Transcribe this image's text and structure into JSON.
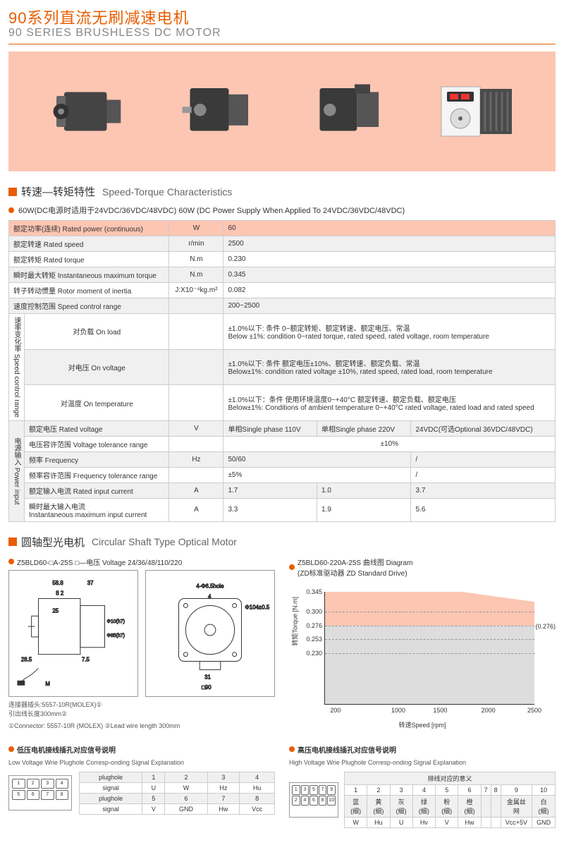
{
  "title": {
    "cn": "90系列直流无刷减速电机",
    "en": "90 SERIES BRUSHLESS DC MOTOR"
  },
  "sections": {
    "speed_torque": {
      "cn": "转速—转矩特性",
      "en": "Speed-Torque Characteristics"
    },
    "circular": {
      "cn": "圆轴型光电机",
      "en": "Circular Shaft Type Optical Motor"
    },
    "low_v": {
      "cn": "低压电机接线插孔对应信号说明",
      "en": "Low Voltage Wrie Plughole Corresp-onding Signal Explanation"
    },
    "high_v": {
      "cn": "高压电机接线插孔对应信号说明",
      "en": "High Voltage Wrie Plughole Corresp-onding Signal Explanation"
    }
  },
  "power_note": "60W(DC电源时适用于24VDC/36VDC/48VDC)  60W (DC Power Supply When Applied To 24VDC/36VDC/48VDC)",
  "spec_table": {
    "rated_power": {
      "label": "额定功率(连续) Rated power (continuous)",
      "unit": "W",
      "val": "60"
    },
    "rated_speed": {
      "label": "额定转速 Rated speed",
      "unit": "r/min",
      "val": "2500"
    },
    "rated_torque": {
      "label": "额定转矩 Rated torque",
      "unit": "N.m",
      "val": "0.230"
    },
    "max_torque": {
      "label": "瞬时最大转矩 Instantaneous maximum torque",
      "unit": "N.m",
      "val": "0.345"
    },
    "inertia": {
      "label": "转子转动惯量 Rotor moment of inertia",
      "unit": "J:X10⁻⁴kg.m²",
      "val": "0.082"
    },
    "speed_range": {
      "label": "速度控制范围 Speed control range",
      "unit": "",
      "val": "200~2500"
    }
  },
  "scr_label": "速率变化率 Speed control range",
  "scr": {
    "load": {
      "label": "对负载 On load",
      "val": "±1.0%以下: 条件 0~额定转矩、额定转速、额定电压、常温\nBelow ±1%: condition 0~rated torque, rated speed, rated voltage, room temperature"
    },
    "voltage": {
      "label": "对电压 On voltage",
      "val": "±1.0%以下: 条件 额定电压±10%、额定转速、额定负载、常温\nBelow±1%: condition rated voltage ±10%, rated speed, rated load, room temperature"
    },
    "temp": {
      "label": "对温度 On temperature",
      "val": "±1.0%以下：条件 使用环境温度0~+40°C 额定转速、额定负载、额定电压\nBelow±1%: Conditions of ambient temperature 0~+40°C rated voltage, rated load and rated speed"
    }
  },
  "power_label": "电源输入 Power input",
  "power": {
    "rated_v": {
      "label": "额定电压 Rated voltage",
      "unit": "V",
      "c1": "单相Single phase 110V",
      "c2": "单相Single phase 220V",
      "c3": "24VDC(可选Optional 36VDC/48VDC)"
    },
    "v_tol": {
      "label": "电压容许范围 Voltage tolerance range",
      "unit": "",
      "span": "±10%"
    },
    "freq": {
      "label": "频率 Frequency",
      "unit": "Hz",
      "c1": "50/60",
      "c2": "",
      "c3": "/"
    },
    "freq_tol": {
      "label": "频率容许范围 Frequency tolerance range",
      "unit": "",
      "c1": "±5%",
      "c2": "",
      "c3": "/"
    },
    "rated_i": {
      "label": "额定输入电流 Rated input current",
      "unit": "A",
      "c1": "1.7",
      "c2": "1.0",
      "c3": "3.7"
    },
    "max_i": {
      "label": "瞬时最大输入电流\nInstantaneous maximum input current",
      "unit": "A",
      "c1": "3.3",
      "c2": "1.9",
      "c3": "5.6"
    }
  },
  "model_note": "Z5BLD60-□A-25S  □—电压 Voltage 24/36/48/110/220",
  "diagram_note": "Z5BLD60-220A-25S 曲线图 Diagram\n(ZD标准驱动器 ZD Standard Drive)",
  "diag_labels": {
    "d1": "58.8",
    "d2": "37",
    "d3": "8",
    "d4": "2",
    "d5": "25",
    "d6": "28.5",
    "d7": "7.5",
    "d8": "Φ10(h7)",
    "d9": "Φ85(h7)",
    "d10": "4-Φ6.5hole",
    "d11": "Φ104±0.5",
    "d12": "4",
    "d13": "31",
    "d14": "□90",
    "d15": "M"
  },
  "connector_note": "连接器插头:5557-10R(MOLEX)①\n引出线长度300mm②",
  "connector_foot": "①Connector: 5557-10R (MOLEX)  ②Lead wire length 300mm",
  "chart": {
    "y_title": "转矩Torque [N.m]",
    "x_title": "转速Speed [rpm]",
    "y_ticks": [
      "0.345",
      "0.300",
      "0.276",
      "0.253",
      "0.230"
    ],
    "x_ticks": [
      "200",
      "1000",
      "1500",
      "2000",
      "2500"
    ],
    "right_label": "(0.276)",
    "colors": {
      "upper": "#fcc6b3",
      "lower": "#dddddd",
      "line": "#333333"
    }
  },
  "low_plug": {
    "headers": [
      "plughole",
      "signal",
      "plughole",
      "signal"
    ],
    "r1": [
      "1",
      "2",
      "3",
      "4"
    ],
    "r2": [
      "U",
      "W",
      "Hz",
      "Hu"
    ],
    "r3": [
      "5",
      "6",
      "7",
      "8"
    ],
    "r4": [
      "V",
      "GND",
      "Hw",
      "Vcc"
    ]
  },
  "high_plug": {
    "header": "排线对应的意义",
    "nums": [
      "1",
      "2",
      "3",
      "4",
      "5",
      "6",
      "7",
      "8",
      "9",
      "10"
    ],
    "colors": [
      "蓝(细)",
      "黄(细)",
      "灰(细)",
      "绿(细)",
      "粉(细)",
      "橙(细)",
      "",
      "",
      "金属丝网",
      "白(细)"
    ],
    "sigs": [
      "W",
      "Hu",
      "U",
      "Hv",
      "V",
      "Hw",
      "",
      "",
      "Vcc+5V",
      "GND"
    ]
  }
}
